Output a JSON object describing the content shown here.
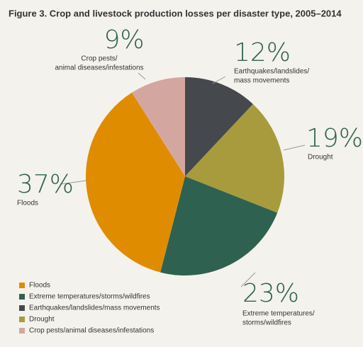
{
  "chart_data": {
    "type": "pie",
    "title": "Figure 3. Crop and livestock production losses per disaster type, 2005–2014",
    "categories": [
      "Earthquakes/landslides/mass movements",
      "Drought",
      "Extreme temperatures/storms/wildfires",
      "Floods",
      "Crop pests/animal diseases/infestations"
    ],
    "values": [
      12,
      19,
      23,
      37,
      9
    ],
    "value_labels": [
      "12%",
      "19%",
      "23%",
      "37%",
      "9%"
    ],
    "colors": [
      "#45484d",
      "#a89b3e",
      "#2f6150",
      "#e08c00",
      "#d4a6a0"
    ],
    "callout_labels": [
      [
        "Earthquakes/landslides/",
        "mass movements"
      ],
      [
        "Drought"
      ],
      [
        "Extreme temperatures/",
        "storms/wildfires"
      ],
      [
        "Floods"
      ],
      [
        "Crop pests/",
        "animal diseases/infestations"
      ]
    ],
    "legend": [
      "Floods",
      "Extreme temperatures/storms/wildfires",
      "Earthquakes/landslides/mass movements",
      "Drought",
      "Crop pests/animal diseases/infestations"
    ]
  }
}
